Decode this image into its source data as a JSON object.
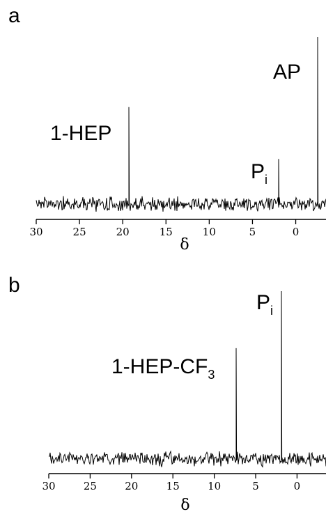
{
  "chart_data": [
    {
      "type": "line",
      "panel_label": "a",
      "xlabel": "δ",
      "xlim": [
        30,
        -3.5
      ],
      "x_reversed": true,
      "x_ticks": [
        30,
        25,
        20,
        15,
        10,
        5,
        0
      ],
      "x_tick_labels": [
        "30",
        "25",
        "20",
        "15",
        "10",
        "5",
        "0"
      ],
      "grid": false,
      "noise_level": 0.045,
      "peaks": [
        {
          "x": 19.3,
          "height": 0.58,
          "label": "1-HEP",
          "label_sub": ""
        },
        {
          "x": 2.0,
          "height": 0.27,
          "label": "P",
          "label_sub": "i"
        },
        {
          "x": -2.5,
          "height": 1.0,
          "label": "AP",
          "label_sub": ""
        }
      ]
    },
    {
      "type": "line",
      "panel_label": "b",
      "xlabel": "δ",
      "xlim": [
        30,
        -3.5
      ],
      "x_reversed": true,
      "x_ticks": [
        30,
        25,
        20,
        15,
        10,
        5,
        0
      ],
      "x_tick_labels": [
        "30",
        "25",
        "20",
        "15",
        "10",
        "5",
        "0"
      ],
      "grid": false,
      "noise_level": 0.045,
      "peaks": [
        {
          "x": 7.4,
          "height": 0.66,
          "label": "1-HEP-CF",
          "label_sub": "3"
        },
        {
          "x": 1.9,
          "height": 1.0,
          "label": "P",
          "label_sub": "i"
        }
      ]
    }
  ]
}
